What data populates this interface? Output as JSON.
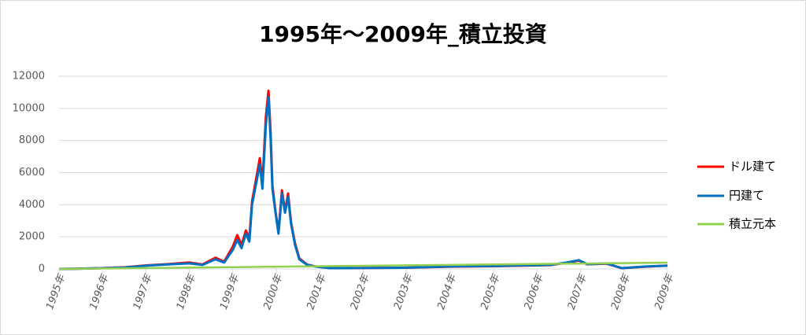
{
  "chart_data": {
    "type": "line",
    "title": "1995年～2009年_積立投資",
    "x": [
      1995.0,
      1995.5,
      1996.0,
      1996.5,
      1997.0,
      1997.5,
      1998.0,
      1998.3,
      1998.6,
      1998.8,
      1999.0,
      1999.1,
      1999.2,
      1999.3,
      1999.38,
      1999.44,
      1999.62,
      1999.68,
      1999.76,
      1999.82,
      1999.87,
      1999.91,
      1999.98,
      2000.05,
      2000.13,
      2000.2,
      2000.27,
      2000.34,
      2000.43,
      2000.53,
      2000.71,
      2000.89,
      2001.25,
      2002.0,
      2003.0,
      2004.0,
      2005.0,
      2006.3,
      2006.68,
      2006.96,
      2007.15,
      2007.6,
      2007.95,
      2008.5,
      2009.0
    ],
    "series": [
      {
        "name": "ドル建て",
        "color": "#ff0000",
        "values": [
          0,
          20,
          55,
          100,
          220,
          300,
          400,
          280,
          700,
          450,
          1400,
          2100,
          1500,
          2400,
          1900,
          4200,
          6900,
          5300,
          9500,
          11100,
          8400,
          5200,
          3600,
          2300,
          4900,
          3600,
          4700,
          2900,
          1600,
          650,
          270,
          160,
          50,
          60,
          80,
          140,
          170,
          240,
          380,
          520,
          290,
          330,
          50,
          140,
          210
        ]
      },
      {
        "name": "円建て",
        "color": "#0070c0",
        "values": [
          0,
          20,
          50,
          90,
          200,
          280,
          350,
          250,
          600,
          400,
          1200,
          1800,
          1300,
          2200,
          1700,
          4000,
          6500,
          5000,
          9000,
          10700,
          8000,
          5000,
          3500,
          2200,
          4700,
          3500,
          4500,
          2800,
          1500,
          600,
          250,
          150,
          50,
          60,
          80,
          150,
          180,
          250,
          400,
          550,
          300,
          350,
          50,
          150,
          200
        ]
      },
      {
        "name": "積立元本",
        "color": "#92d050",
        "values": [
          0,
          14,
          28,
          42,
          56,
          70,
          84,
          92,
          101,
          106,
          112,
          115,
          118,
          120,
          123,
          124,
          129,
          131,
          133,
          135,
          136,
          137,
          139,
          141,
          143,
          145,
          148,
          150,
          152,
          155,
          160,
          165,
          175,
          196,
          224,
          252,
          280,
          316,
          327,
          335,
          340,
          353,
          363,
          378,
          392
        ]
      }
    ],
    "xlim": [
      1995,
      2009
    ],
    "xticks": [
      {
        "value": 1995,
        "label": "1995年"
      },
      {
        "value": 1996,
        "label": "1996年"
      },
      {
        "value": 1997,
        "label": "1997年"
      },
      {
        "value": 1998,
        "label": "1998年"
      },
      {
        "value": 1999,
        "label": "1999年"
      },
      {
        "value": 2000,
        "label": "2000年"
      },
      {
        "value": 2001,
        "label": "2001年"
      },
      {
        "value": 2002,
        "label": "2002年"
      },
      {
        "value": 2003,
        "label": "2003年"
      },
      {
        "value": 2004,
        "label": "2004年"
      },
      {
        "value": 2005,
        "label": "2005年"
      },
      {
        "value": 2006,
        "label": "2006年"
      },
      {
        "value": 2007,
        "label": "2007年"
      },
      {
        "value": 2008,
        "label": "2008年"
      },
      {
        "value": 2009,
        "label": "2009年"
      }
    ],
    "ylim": [
      0,
      12000
    ],
    "yticks": [
      0,
      2000,
      4000,
      6000,
      8000,
      10000,
      12000
    ],
    "grid": true,
    "legend": "right"
  }
}
